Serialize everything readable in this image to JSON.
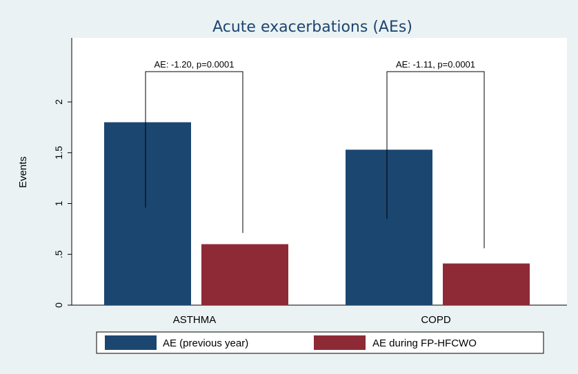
{
  "chart_data": {
    "type": "bar",
    "title": "Acute exacerbations (AEs)",
    "xlabel": "",
    "ylabel": "Events",
    "categories": [
      "ASTHMA",
      "COPD"
    ],
    "series": [
      {
        "name": "AE (previous year)",
        "color": "#1b4670",
        "values": [
          1.8,
          1.53
        ]
      },
      {
        "name": "AE during FP-HFCWO",
        "color": "#8e2a35",
        "values": [
          0.6,
          0.41
        ]
      }
    ],
    "ylim": [
      0,
      2.6
    ],
    "yticks": [
      0,
      0.5,
      1,
      1.5,
      2
    ],
    "ytick_labels": [
      "0",
      ".5",
      "1",
      "1.5",
      "2"
    ],
    "annotations": [
      {
        "category": "ASTHMA",
        "text": "AE: -1.20, p=0.0001"
      },
      {
        "category": "COPD",
        "text": "AE: -1.11, p=0.0001"
      }
    ],
    "grid": false,
    "legend_position": "bottom",
    "background": "#eaf2f3"
  }
}
